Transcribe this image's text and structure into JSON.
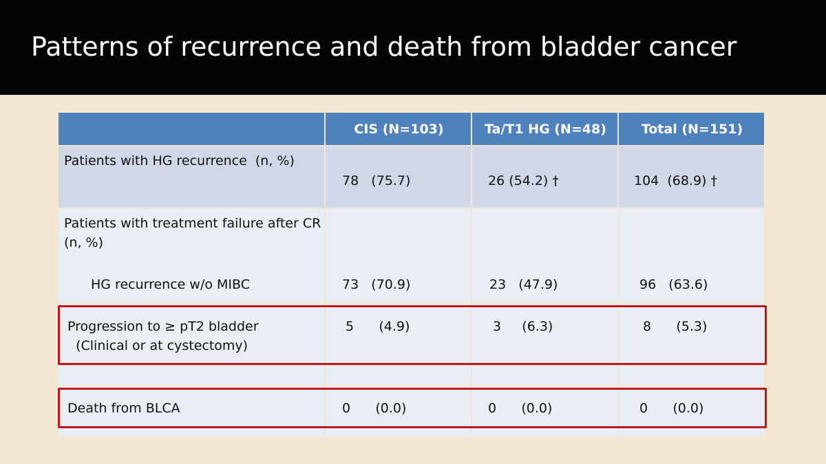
{
  "title": "Patterns of recurrence and death from bladder cancer",
  "table": {
    "header": [
      "CIS (N=103)",
      "Ta/T1 HG (N=48)",
      "Total (N=151)"
    ],
    "rows": [
      {
        "label": "Patients with HG recurrence  (n, %)",
        "cells": [
          "78   (75.7)",
          "26 (54.2) †",
          "104  (68.9) †"
        ]
      },
      {
        "label": "Patients with treatment failure after CR (n, %)",
        "sublabel": "HG recurrence w/o MIBC",
        "cells": [
          "73   (70.9)",
          "23   (47.9)",
          "96   (63.6)"
        ]
      },
      {
        "label": [
          "Progression to ≥ pT2 bladder",
          "  (Clinical or at cystectomy)"
        ],
        "cells": [
          "5      (4.9)",
          "3     (6.3)",
          "8      (5.3)"
        ]
      },
      {
        "label": "Death from BLCA",
        "cells": [
          "0      (0.0)",
          "0      (0.0)",
          "0      (0.0)"
        ]
      }
    ]
  }
}
